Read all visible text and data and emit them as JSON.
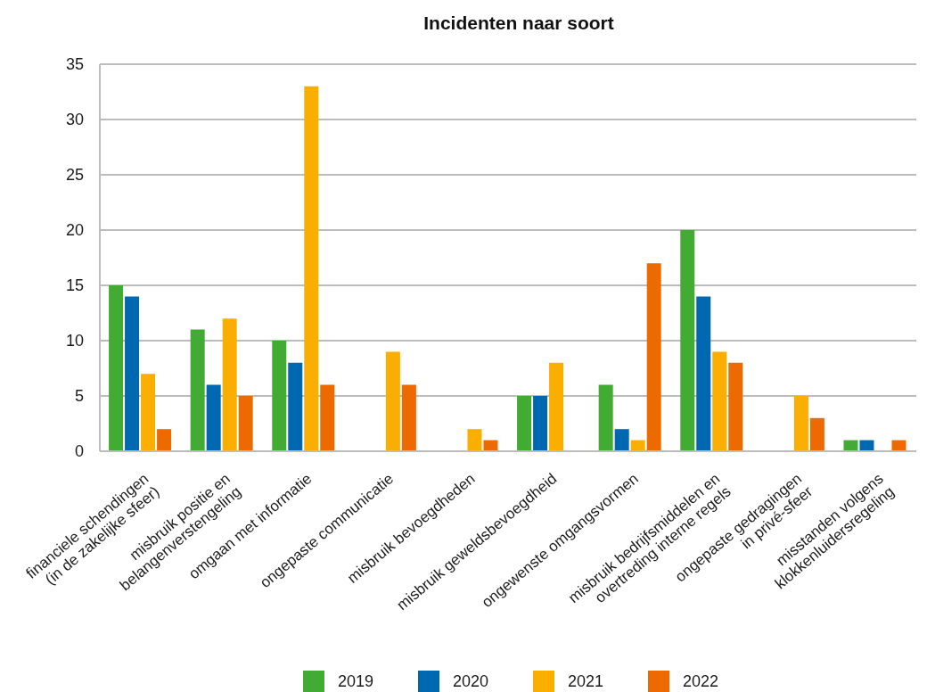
{
  "chart_data": {
    "type": "bar",
    "title": "Incidenten naar soort",
    "categories": [
      "financiele schendingen\n(in de zakelijke sfeer)",
      "misbruik positie en\nbelangenverstengeling",
      "omgaan met informatie",
      "ongepaste communicatie",
      "misbruik bevoegdheden",
      "misbruik geweldsbevoegdheid",
      "ongewenste omgangsvormen",
      "misbruik bedrijfsmiddelen en\novertreding interne regels",
      "ongepaste gedragingen\nin privé-sfeer",
      "misstanden volgens\nklokkenluidersregeling"
    ],
    "series": [
      {
        "name": "2019",
        "color": "#42ab34",
        "values": [
          15,
          11,
          10,
          0,
          0,
          5,
          6,
          20,
          0,
          1
        ]
      },
      {
        "name": "2020",
        "color": "#0067b1",
        "values": [
          14,
          6,
          8,
          0,
          0,
          5,
          2,
          14,
          0,
          1
        ]
      },
      {
        "name": "2021",
        "color": "#f9ae00",
        "values": [
          7,
          12,
          33,
          9,
          2,
          8,
          1,
          9,
          5,
          0
        ]
      },
      {
        "name": "2022",
        "color": "#ec6a00",
        "values": [
          2,
          5,
          6,
          6,
          1,
          0,
          17,
          8,
          3,
          1
        ]
      }
    ],
    "ylim": [
      0,
      35
    ],
    "yticks": [
      0,
      5,
      10,
      15,
      20,
      25,
      30,
      35
    ],
    "grid": "y",
    "legend": "bottom"
  }
}
